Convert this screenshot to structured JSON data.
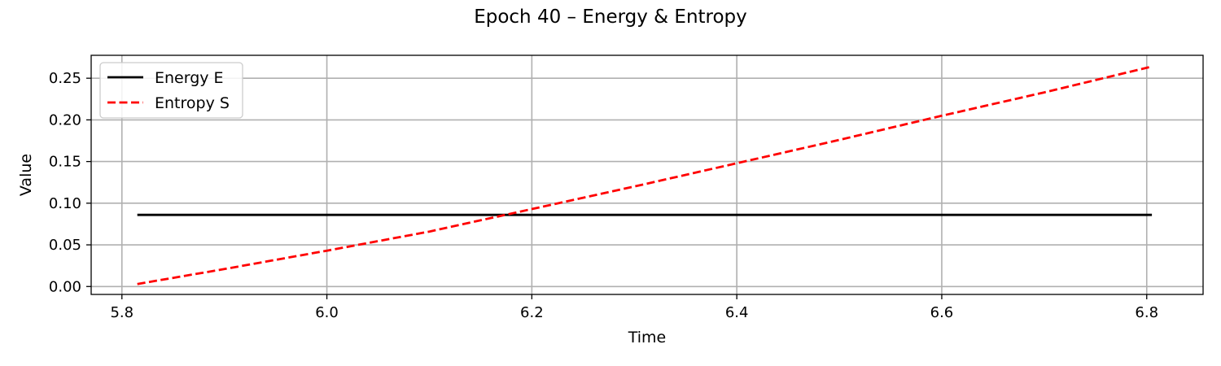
{
  "chart_data": {
    "type": "line",
    "title": "Epoch 40 – Energy & Entropy",
    "xlabel": "Time",
    "ylabel": "Value",
    "xlim": [
      5.77,
      6.855
    ],
    "ylim": [
      -0.0095,
      0.2775
    ],
    "xticks": [
      5.8,
      6.0,
      6.2,
      6.4,
      6.6,
      6.8
    ],
    "xtick_labels": [
      "5.8",
      "6.0",
      "6.2",
      "6.4",
      "6.6",
      "6.8"
    ],
    "yticks": [
      0.0,
      0.05,
      0.1,
      0.15,
      0.2,
      0.25
    ],
    "ytick_labels": [
      "0.00",
      "0.05",
      "0.10",
      "0.15",
      "0.20",
      "0.25"
    ],
    "grid": true,
    "legend_position": "top-left",
    "series": [
      {
        "name": "Energy E",
        "color": "#000000",
        "style": "solid",
        "x": [
          5.815,
          6.805
        ],
        "y": [
          0.086,
          0.086
        ]
      },
      {
        "name": "Entropy S",
        "color": "#ff0000",
        "style": "dashed",
        "x": [
          5.815,
          5.9,
          6.0,
          6.1,
          6.2,
          6.3,
          6.4,
          6.5,
          6.6,
          6.7,
          6.805
        ],
        "y": [
          0.003,
          0.021,
          0.043,
          0.066,
          0.093,
          0.12,
          0.148,
          0.176,
          0.205,
          0.233,
          0.264
        ]
      }
    ]
  }
}
